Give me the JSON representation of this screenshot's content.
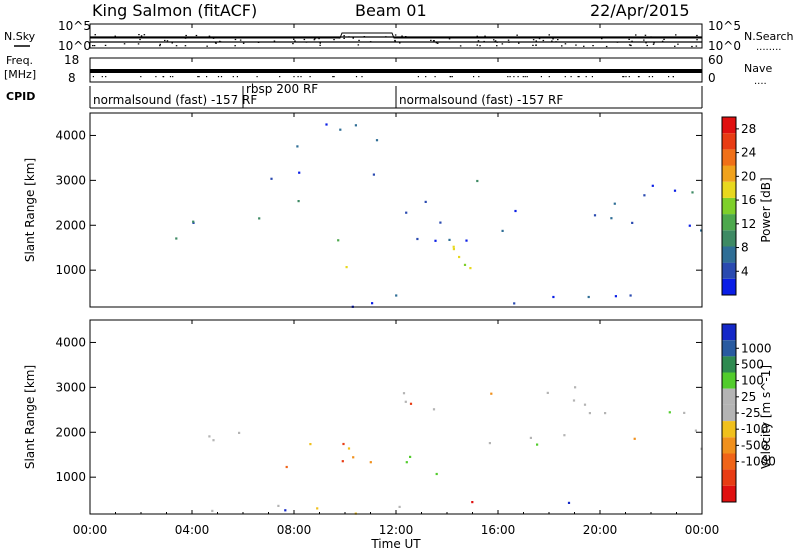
{
  "header": {
    "station": "King Salmon (fitACF)",
    "beam": "Beam 01",
    "date": "22/Apr/2015"
  },
  "noise_panel": {
    "left_label": "N.Sky",
    "right_label": "N.Search",
    "right_legend": "........",
    "yticks_left": [
      "10^5",
      "10^0"
    ],
    "yticks_right": [
      "10^5",
      "10^0"
    ]
  },
  "freq_panel": {
    "left_label_line1": "Freq.",
    "left_label_line2": "[MHz]",
    "right_label": "Nave",
    "right_legend": "....",
    "yticks_left": [
      "18",
      "8"
    ],
    "yticks_right": [
      "60",
      "0"
    ]
  },
  "cpid_panel": {
    "label": "CPID",
    "segments": [
      {
        "start": 0,
        "end": 6.0,
        "text": "normalsound (fast) -157 RF"
      },
      {
        "start": 6.0,
        "end": 12.0,
        "text": "rbsp 200 RF"
      },
      {
        "start": 12.0,
        "end": 24,
        "text": "normalsound (fast) -157 RF"
      }
    ]
  },
  "chart_data": [
    {
      "type": "heatmap",
      "name": "power",
      "ylabel": "Slant Range [km]",
      "xlabel": "Time UT",
      "xlim": [
        0,
        24
      ],
      "ylim": [
        180,
        4500
      ],
      "yticks": [
        "1000",
        "2000",
        "3000",
        "4000"
      ],
      "colorbar": {
        "label": "Power [dB]",
        "ticks": [
          "4",
          "8",
          "12",
          "16",
          "20",
          "24",
          "28"
        ],
        "range": [
          0,
          30
        ],
        "colors": [
          "#0a1ee6",
          "#2a4ab0",
          "#2f6e96",
          "#3e8a64",
          "#4ca84c",
          "#7ecf2a",
          "#e8d81e",
          "#f0a21c",
          "#f07018",
          "#e83c14",
          "#e01010"
        ]
      },
      "features": [
        {
          "t0": 2.8,
          "t1": 8.2,
          "r0": 1700,
          "r1": 2350,
          "level": 0.25
        },
        {
          "t0": 7.0,
          "t1": 8.4,
          "r0": 2300,
          "r1": 3400,
          "level": 0.2
        },
        {
          "t0": 9.0,
          "t1": 15.6,
          "r0": 1000,
          "r1": 1750,
          "level": 0.45
        },
        {
          "t0": 12.2,
          "t1": 15.0,
          "r0": 1050,
          "r1": 1400,
          "level": 0.75
        },
        {
          "t0": 12.0,
          "t1": 24.0,
          "r0": 1600,
          "r1": 3100,
          "level": 0.15
        },
        {
          "t0": 0.0,
          "t1": 24.0,
          "r0": 200,
          "r1": 500,
          "level": 0.1
        },
        {
          "t0": 8.0,
          "t1": 11.8,
          "r0": 2800,
          "r1": 4500,
          "level": 0.12
        }
      ]
    },
    {
      "type": "heatmap",
      "name": "velocity",
      "ylabel": "Slant Range [km]",
      "xlabel": "Time UT",
      "xlim": [
        0,
        24
      ],
      "ylim": [
        180,
        4500
      ],
      "yticks": [
        "1000",
        "2000",
        "3000",
        "4000"
      ],
      "colorbar": {
        "label": "Velocity [m s^-1]",
        "ticks": [
          "1000",
          "500",
          "100",
          "25",
          "-25",
          "-100",
          "-500",
          "-1000"
        ],
        "colors": [
          "#1428c8",
          "#285aa0",
          "#2e8a50",
          "#52cc2c",
          "#b4b4b4",
          "#b4b4b4",
          "#f0c01c",
          "#f0901c",
          "#f06418",
          "#e83c14",
          "#e01010"
        ]
      },
      "features": [
        {
          "t0": 2.8,
          "t1": 6.8,
          "r0": 1700,
          "r1": 2300,
          "vel": "grey"
        },
        {
          "t0": 6.8,
          "t1": 12.2,
          "r0": 1000,
          "r1": 2200,
          "vel": "negative"
        },
        {
          "t0": 12.2,
          "t1": 15.6,
          "r0": 1000,
          "r1": 1750,
          "vel": "positive"
        },
        {
          "t0": 12.0,
          "t1": 24.0,
          "r0": 1600,
          "r1": 3100,
          "vel": "grey"
        },
        {
          "t0": 0.0,
          "t1": 24.0,
          "r0": 200,
          "r1": 500,
          "vel": "mixed"
        }
      ]
    }
  ],
  "xaxis": {
    "ticks": [
      "00:00",
      "04:00",
      "08:00",
      "12:00",
      "16:00",
      "20:00",
      "00:00"
    ],
    "label": "Time UT"
  }
}
